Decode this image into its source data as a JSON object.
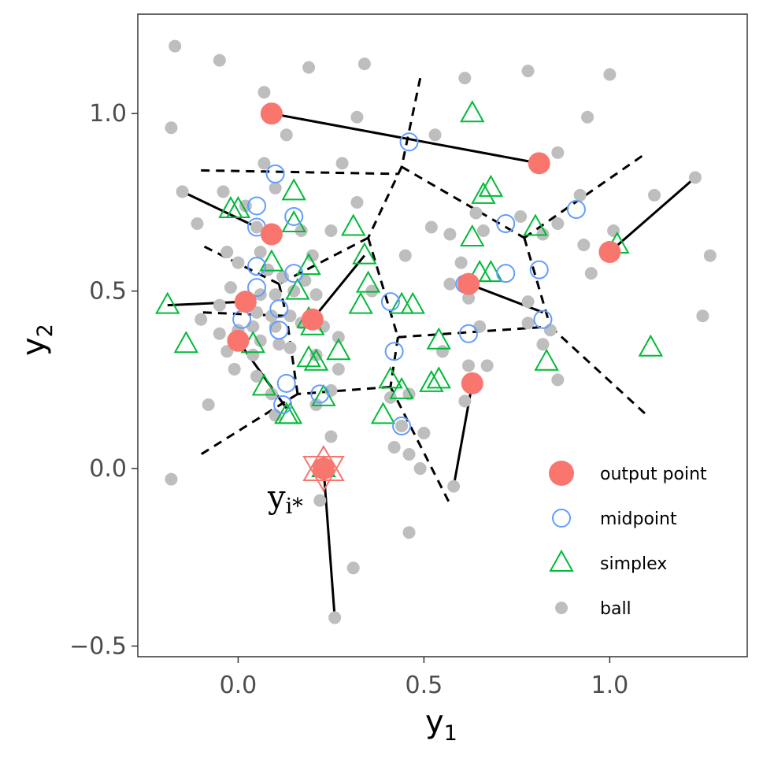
{
  "chart_data": {
    "type": "scatter",
    "xlabel": "y",
    "xlabel_subscript": "1",
    "ylabel": "y",
    "ylabel_subscript": "2",
    "xlim": [
      -0.27,
      1.37
    ],
    "ylim": [
      -0.53,
      1.28
    ],
    "x_ticks": [
      0.0,
      0.5,
      1.0
    ],
    "y_ticks": [
      -0.5,
      0.0,
      0.5,
      1.0
    ],
    "x_tick_labels": [
      "0.0",
      "0.5",
      "1.0"
    ],
    "y_tick_labels": [
      "−0.5",
      "0.0",
      "0.5",
      "1.0"
    ],
    "grid": false,
    "legend_position": "bottom-right",
    "legend": [
      {
        "label": "output point",
        "symbol": "filled-circle",
        "color": "#f8766d"
      },
      {
        "label": "midpoint",
        "symbol": "open-circle",
        "color": "#619cff"
      },
      {
        "label": "simplex",
        "symbol": "open-triangle",
        "color": "#00ba38"
      },
      {
        "label": "ball",
        "symbol": "small-filled-circle",
        "color": "#bebebe"
      }
    ],
    "annotation": {
      "text": "y",
      "subscript": "i*",
      "x": 0.21,
      "y": -0.09
    },
    "highlight_point": {
      "x": 0.23,
      "y": 0.0,
      "color": "#f8766d"
    },
    "colors": {
      "output": "#f8766d",
      "midpoint": "#619cff",
      "simplex": "#00ba38",
      "ball": "#bebebe",
      "line": "#000000"
    },
    "ball": [
      [
        -0.17,
        1.19
      ],
      [
        -0.05,
        1.15
      ],
      [
        0.07,
        1.06
      ],
      [
        0.19,
        1.13
      ],
      [
        0.34,
        1.14
      ],
      [
        0.61,
        1.1
      ],
      [
        0.78,
        1.12
      ],
      [
        1.0,
        1.11
      ],
      [
        -0.18,
        0.96
      ],
      [
        0.13,
        0.94
      ],
      [
        0.32,
        0.99
      ],
      [
        0.53,
        0.94
      ],
      [
        0.94,
        0.99
      ],
      [
        0.86,
        0.89
      ],
      [
        0.07,
        0.86
      ],
      [
        0.28,
        0.86
      ],
      [
        -0.04,
        0.78
      ],
      [
        0.1,
        0.79
      ],
      [
        0.02,
        0.74
      ],
      [
        0.32,
        0.75
      ],
      [
        0.64,
        0.72
      ],
      [
        0.76,
        0.71
      ],
      [
        0.92,
        0.77
      ],
      [
        1.12,
        0.77
      ],
      [
        0.86,
        0.69
      ],
      [
        -0.11,
        0.69
      ],
      [
        0.05,
        0.68
      ],
      [
        0.17,
        0.67
      ],
      [
        0.25,
        0.67
      ],
      [
        0.52,
        0.68
      ],
      [
        0.57,
        0.66
      ],
      [
        0.66,
        0.67
      ],
      [
        0.82,
        0.66
      ],
      [
        0.93,
        0.63
      ],
      [
        1.01,
        0.67
      ],
      [
        -0.03,
        0.61
      ],
      [
        0.06,
        0.61
      ],
      [
        0.2,
        0.6
      ],
      [
        0.45,
        0.6
      ],
      [
        0.6,
        0.58
      ],
      [
        1.27,
        0.6
      ],
      [
        0.0,
        0.58
      ],
      [
        0.08,
        0.56
      ],
      [
        0.12,
        0.54
      ],
      [
        0.18,
        0.53
      ],
      [
        0.57,
        0.52
      ],
      [
        0.95,
        0.55
      ],
      [
        -0.02,
        0.51
      ],
      [
        0.06,
        0.49
      ],
      [
        0.1,
        0.49
      ],
      [
        0.15,
        0.5
      ],
      [
        0.21,
        0.49
      ],
      [
        0.36,
        0.5
      ],
      [
        0.62,
        0.48
      ],
      [
        0.78,
        0.47
      ],
      [
        -0.05,
        0.46
      ],
      [
        0.05,
        0.44
      ],
      [
        0.09,
        0.43
      ],
      [
        0.14,
        0.43
      ],
      [
        0.04,
        0.4
      ],
      [
        0.1,
        0.4
      ],
      [
        0.17,
        0.41
      ],
      [
        0.23,
        0.4
      ],
      [
        0.65,
        0.4
      ],
      [
        0.78,
        0.41
      ],
      [
        0.84,
        0.39
      ],
      [
        1.25,
        0.43
      ],
      [
        -0.1,
        0.42
      ],
      [
        -0.05,
        0.38
      ],
      [
        0.0,
        0.39
      ],
      [
        0.06,
        0.36
      ],
      [
        0.11,
        0.35
      ],
      [
        0.27,
        0.37
      ],
      [
        0.82,
        0.35
      ],
      [
        -0.03,
        0.33
      ],
      [
        0.04,
        0.32
      ],
      [
        0.14,
        0.34
      ],
      [
        0.21,
        0.32
      ],
      [
        0.27,
        0.28
      ],
      [
        0.55,
        0.33
      ],
      [
        -0.01,
        0.28
      ],
      [
        0.05,
        0.26
      ],
      [
        0.62,
        0.29
      ],
      [
        0.67,
        0.29
      ],
      [
        0.86,
        0.25
      ],
      [
        0.09,
        0.21
      ],
      [
        0.25,
        0.22
      ],
      [
        0.41,
        0.2
      ],
      [
        0.46,
        0.21
      ],
      [
        0.61,
        0.19
      ],
      [
        -0.08,
        0.18
      ],
      [
        0.1,
        0.15
      ],
      [
        0.21,
        0.18
      ],
      [
        0.44,
        0.12
      ],
      [
        0.5,
        0.1
      ],
      [
        0.25,
        0.09
      ],
      [
        0.42,
        0.06
      ],
      [
        0.46,
        0.04
      ],
      [
        0.49,
        0.0
      ],
      [
        -0.18,
        -0.03
      ],
      [
        0.58,
        -0.05
      ],
      [
        0.22,
        -0.09
      ],
      [
        0.46,
        -0.18
      ],
      [
        0.31,
        -0.28
      ],
      [
        0.26,
        -0.42
      ],
      [
        1.23,
        0.82
      ],
      [
        -0.15,
        0.78
      ]
    ],
    "output": [
      [
        0.09,
        1.0
      ],
      [
        0.81,
        0.86
      ],
      [
        0.09,
        0.66
      ],
      [
        1.0,
        0.61
      ],
      [
        0.62,
        0.52
      ],
      [
        0.02,
        0.47
      ],
      [
        0.2,
        0.42
      ],
      [
        0.0,
        0.36
      ],
      [
        0.63,
        0.24
      ],
      [
        0.23,
        0.0
      ]
    ],
    "midpoint": [
      [
        0.46,
        0.92
      ],
      [
        0.1,
        0.83
      ],
      [
        0.05,
        0.74
      ],
      [
        0.15,
        0.71
      ],
      [
        0.05,
        0.68
      ],
      [
        0.91,
        0.73
      ],
      [
        0.72,
        0.69
      ],
      [
        0.81,
        0.56
      ],
      [
        0.05,
        0.57
      ],
      [
        0.15,
        0.55
      ],
      [
        0.05,
        0.51
      ],
      [
        0.72,
        0.55
      ],
      [
        0.61,
        0.52
      ],
      [
        0.41,
        0.47
      ],
      [
        0.11,
        0.45
      ],
      [
        0.01,
        0.42
      ],
      [
        0.82,
        0.42
      ],
      [
        0.62,
        0.38
      ],
      [
        0.11,
        0.39
      ],
      [
        0.42,
        0.33
      ],
      [
        0.13,
        0.24
      ],
      [
        0.22,
        0.21
      ],
      [
        0.12,
        0.18
      ],
      [
        0.44,
        0.12
      ]
    ],
    "simplex": [
      [
        0.63,
        1.0
      ],
      [
        0.15,
        0.78
      ],
      [
        0.66,
        0.77
      ],
      [
        0.68,
        0.79
      ],
      [
        -0.02,
        0.73
      ],
      [
        0.0,
        0.73
      ],
      [
        0.15,
        0.69
      ],
      [
        0.31,
        0.68
      ],
      [
        0.63,
        0.65
      ],
      [
        0.8,
        0.68
      ],
      [
        1.02,
        0.63
      ],
      [
        0.34,
        0.6
      ],
      [
        0.09,
        0.58
      ],
      [
        0.19,
        0.57
      ],
      [
        0.65,
        0.55
      ],
      [
        0.68,
        0.55
      ],
      [
        0.35,
        0.52
      ],
      [
        0.16,
        0.5
      ],
      [
        0.33,
        0.46
      ],
      [
        0.44,
        0.46
      ],
      [
        0.47,
        0.46
      ],
      [
        -0.19,
        0.46
      ],
      [
        0.19,
        0.42
      ],
      [
        0.2,
        0.4
      ],
      [
        -0.14,
        0.35
      ],
      [
        0.54,
        0.36
      ],
      [
        1.11,
        0.34
      ],
      [
        0.27,
        0.33
      ],
      [
        0.04,
        0.35
      ],
      [
        0.19,
        0.31
      ],
      [
        0.21,
        0.3
      ],
      [
        0.83,
        0.3
      ],
      [
        0.41,
        0.25
      ],
      [
        0.52,
        0.24
      ],
      [
        0.54,
        0.25
      ],
      [
        0.07,
        0.23
      ],
      [
        0.44,
        0.22
      ],
      [
        0.23,
        0.2
      ],
      [
        0.39,
        0.15
      ],
      [
        0.13,
        0.15
      ],
      [
        0.14,
        0.15
      ],
      [
        0.23,
        0.0
      ]
    ],
    "segments": [
      [
        [
          0.09,
          1.0
        ],
        [
          0.81,
          0.86
        ]
      ],
      [
        [
          -0.15,
          0.78
        ],
        [
          0.09,
          0.66
        ]
      ],
      [
        [
          1.0,
          0.61
        ],
        [
          1.23,
          0.82
        ]
      ],
      [
        [
          0.62,
          0.52
        ],
        [
          0.82,
          0.44
        ]
      ],
      [
        [
          -0.19,
          0.46
        ],
        [
          0.02,
          0.47
        ]
      ],
      [
        [
          0.2,
          0.42
        ],
        [
          0.34,
          0.6
        ]
      ],
      [
        [
          0.0,
          0.36
        ],
        [
          0.13,
          0.17
        ]
      ],
      [
        [
          0.63,
          0.24
        ],
        [
          0.58,
          -0.05
        ]
      ],
      [
        [
          0.23,
          0.0
        ],
        [
          0.26,
          -0.42
        ]
      ]
    ],
    "voronoi_edges": [
      [
        [
          -0.1,
          0.84
        ],
        [
          0.43,
          0.83
        ]
      ],
      [
        [
          0.49,
          1.1
        ],
        [
          0.44,
          0.85
        ]
      ],
      [
        [
          0.44,
          0.85
        ],
        [
          0.35,
          0.65
        ]
      ],
      [
        [
          0.44,
          0.85
        ],
        [
          0.77,
          0.65
        ]
      ],
      [
        [
          0.77,
          0.65
        ],
        [
          1.1,
          0.89
        ]
      ],
      [
        [
          0.77,
          0.65
        ],
        [
          0.84,
          0.4
        ]
      ],
      [
        [
          0.84,
          0.4
        ],
        [
          1.1,
          0.15
        ]
      ],
      [
        [
          0.43,
          0.37
        ],
        [
          0.84,
          0.4
        ]
      ],
      [
        [
          0.35,
          0.65
        ],
        [
          0.43,
          0.37
        ]
      ],
      [
        [
          0.43,
          0.37
        ],
        [
          0.41,
          0.23
        ]
      ],
      [
        [
          0.41,
          0.23
        ],
        [
          0.57,
          -0.1
        ]
      ],
      [
        [
          0.41,
          0.23
        ],
        [
          0.16,
          0.21
        ]
      ],
      [
        [
          0.16,
          0.21
        ],
        [
          0.13,
          0.43
        ]
      ],
      [
        [
          0.16,
          0.21
        ],
        [
          -0.1,
          0.04
        ]
      ],
      [
        [
          0.35,
          0.65
        ],
        [
          0.11,
          0.52
        ]
      ],
      [
        [
          0.11,
          0.52
        ],
        [
          -0.1,
          0.63
        ]
      ],
      [
        [
          0.11,
          0.52
        ],
        [
          0.13,
          0.43
        ]
      ],
      [
        [
          0.13,
          0.43
        ],
        [
          -0.1,
          0.44
        ]
      ]
    ]
  }
}
